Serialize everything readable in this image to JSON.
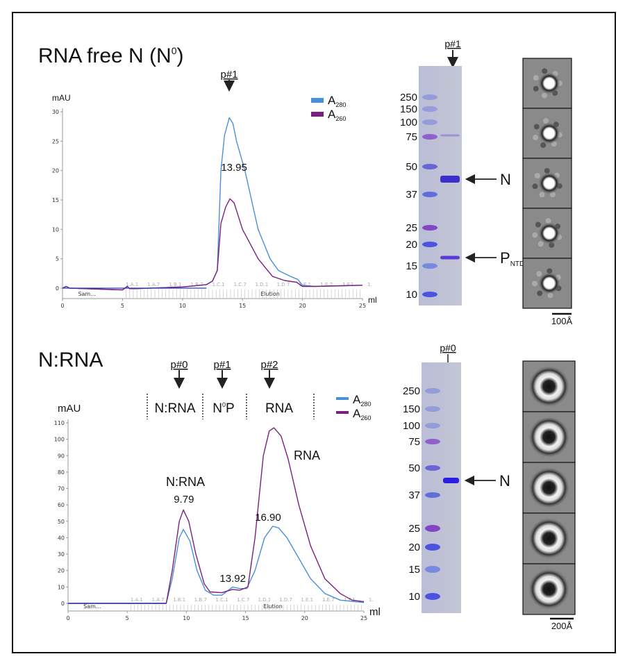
{
  "top": {
    "title": "RNA free N (N",
    "title_sup": "0",
    "title_end": ")",
    "peak_marker": "p#1",
    "gel": {
      "marker_label": "p#1",
      "ladder": [
        "250",
        "150",
        "100",
        "75",
        "50",
        "37",
        "25",
        "20",
        "15",
        "10"
      ],
      "band_labels": {
        "n": "N",
        "p": "P",
        "p_sub": "NTD"
      }
    },
    "scale_bar": "100Å"
  },
  "bottom": {
    "title": "N:RNA",
    "markers": [
      "p#0",
      "p#1",
      "p#2"
    ],
    "regions": {
      "nrna": "N:RNA",
      "n0p_n": "N",
      "n0p_sup": "0",
      "n0p_p": "P",
      "rna": "RNA"
    },
    "peak_labels": {
      "nrna": "N:RNA",
      "rna": "RNA"
    },
    "gel": {
      "marker_label": "p#0",
      "ladder": [
        "250",
        "150",
        "100",
        "75",
        "50",
        "37",
        "25",
        "20",
        "15",
        "10"
      ],
      "band_labels": {
        "n": "N"
      }
    },
    "scale_bar": "200Å"
  },
  "colors": {
    "a280": "#4a8fd9",
    "a260": "#7b1f7e",
    "baseline": "#2a3fb0"
  },
  "chart_data": [
    {
      "type": "line",
      "title": "RNA free N (N0)",
      "xlabel": "ml",
      "ylabel": "mAU",
      "xlim": [
        0,
        25
      ],
      "ylim": [
        0,
        30
      ],
      "xticks": [
        0,
        5,
        10,
        15,
        20,
        25
      ],
      "yticks": [
        0,
        5,
        10,
        15,
        20,
        25,
        30
      ],
      "legend": {
        "position": "top-right",
        "entries": [
          {
            "label": "A",
            "sub": "280"
          },
          {
            "label": "A",
            "sub": "260"
          }
        ]
      },
      "fractions": [
        "1.A.1",
        "1.A.7",
        "1.B.1",
        "1.B.7",
        "1.C.1",
        "1.C.7",
        "1.D.1",
        "1.D.7",
        "1.E.1",
        "1.E.7",
        "1.F.1",
        "1."
      ],
      "segments": [
        "Sam...",
        "Elution"
      ],
      "annotations": [
        {
          "text": "13.95",
          "x": 13.95
        }
      ],
      "series": [
        {
          "name": "A280",
          "x": [
            0,
            0.3,
            0.6,
            5,
            5.4,
            5.6,
            6,
            10,
            12,
            12.5,
            12.9,
            13.2,
            13.5,
            13.9,
            14.2,
            14.5,
            15.2,
            16.3,
            17.3,
            18,
            19,
            19.6,
            20,
            21,
            25
          ],
          "y": [
            0,
            0.3,
            0,
            -0.3,
            0.3,
            -0.1,
            -0.1,
            0.2,
            0.6,
            1.2,
            3,
            20,
            26,
            29,
            28,
            25,
            20,
            10,
            5,
            3,
            2,
            1.5,
            0.5,
            0.3,
            0.5
          ]
        },
        {
          "name": "A260",
          "x": [
            0,
            0.3,
            0.6,
            5,
            5.4,
            5.6,
            6,
            10,
            12,
            12.5,
            12.9,
            13.2,
            13.6,
            13.95,
            14.3,
            15,
            16.3,
            17.5,
            18.5,
            19.5,
            20,
            21,
            25
          ],
          "y": [
            0,
            0.3,
            0,
            -0.3,
            0.3,
            -0.1,
            -0.1,
            0.2,
            0.6,
            1.2,
            3,
            11,
            13.8,
            15.2,
            14.5,
            10,
            5,
            2,
            1.3,
            1,
            0.3,
            0.3,
            0.5
          ]
        }
      ]
    },
    {
      "type": "line",
      "title": "N:RNA",
      "xlabel": "ml",
      "ylabel": "mAU",
      "xlim": [
        0,
        25
      ],
      "ylim": [
        0,
        110
      ],
      "xticks": [
        0,
        5,
        10,
        15,
        20,
        25
      ],
      "yticks": [
        0,
        10,
        20,
        30,
        40,
        50,
        60,
        70,
        80,
        90,
        100,
        110
      ],
      "legend": {
        "position": "top-right",
        "entries": [
          {
            "label": "A",
            "sub": "280"
          },
          {
            "label": "A",
            "sub": "260"
          }
        ]
      },
      "fractions": [
        "1.A.1",
        "1.A.7",
        "1.B.1",
        "1.B.7",
        "1.C.1",
        "1.C.7",
        "1.D.1",
        "1.D.7",
        "1.E.1",
        "1.E.7",
        "1.F.1",
        "1."
      ],
      "segments": [
        "Sam...",
        "Elution"
      ],
      "annotations": [
        {
          "text": "9.79",
          "x": 9.79
        },
        {
          "text": "13.92",
          "x": 13.92
        },
        {
          "text": "16.90",
          "x": 16.9
        }
      ],
      "series": [
        {
          "name": "A280",
          "x": [
            0,
            8.3,
            8.8,
            9.4,
            9.75,
            10.3,
            10.9,
            11.6,
            12.3,
            13,
            13.9,
            14.5,
            15.1,
            15.8,
            16.6,
            17.3,
            17.8,
            18.5,
            19.3,
            20.5,
            21.7,
            23,
            25
          ],
          "y": [
            0,
            0,
            15,
            40,
            45,
            38,
            20,
            8,
            5,
            5,
            10,
            9,
            9,
            20,
            40,
            47,
            46,
            40,
            30,
            15,
            6,
            2,
            0.5
          ]
        },
        {
          "name": "A260",
          "x": [
            0,
            8.3,
            8.8,
            9.4,
            9.75,
            10.2,
            10.8,
            11.5,
            12,
            13,
            13.9,
            14.5,
            15.2,
            15.8,
            16.5,
            17,
            17.4,
            18,
            18.6,
            19.5,
            20.5,
            21.7,
            23,
            24,
            25
          ],
          "y": [
            0,
            0,
            20,
            50,
            57,
            50,
            30,
            12,
            7,
            6.5,
            8.5,
            8,
            10,
            40,
            90,
            105,
            107,
            102,
            88,
            60,
            35,
            15,
            6,
            2,
            1
          ]
        }
      ]
    }
  ]
}
